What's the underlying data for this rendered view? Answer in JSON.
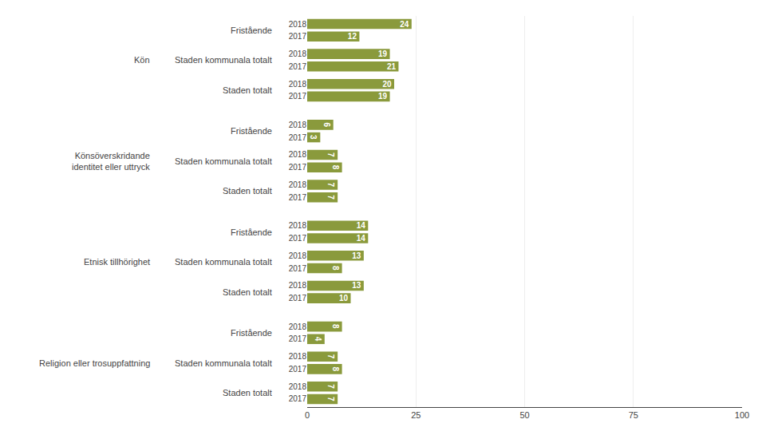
{
  "chart_data": {
    "type": "bar",
    "orientation": "horizontal",
    "color": "#8a9a3c",
    "xlim": [
      0,
      100
    ],
    "xticks": [
      0,
      25,
      50,
      75,
      100
    ],
    "grid": true,
    "data_labels": true,
    "groups": [
      {
        "label": "Kön",
        "subgroups": [
          {
            "label": "Fristående",
            "categories": [
              "2018",
              "2017"
            ],
            "values": [
              24,
              12
            ]
          },
          {
            "label": "Staden kommunala totalt",
            "categories": [
              "2018",
              "2017"
            ],
            "values": [
              19,
              21
            ]
          },
          {
            "label": "Staden totalt",
            "categories": [
              "2018",
              "2017"
            ],
            "values": [
              20,
              19
            ]
          }
        ]
      },
      {
        "label": "Könsöverskridande\nidentitet eller uttryck",
        "subgroups": [
          {
            "label": "Fristående",
            "categories": [
              "2018",
              "2017"
            ],
            "values": [
              6,
              3
            ]
          },
          {
            "label": "Staden kommunala totalt",
            "categories": [
              "2018",
              "2017"
            ],
            "values": [
              7,
              8
            ]
          },
          {
            "label": "Staden totalt",
            "categories": [
              "2018",
              "2017"
            ],
            "values": [
              7,
              7
            ]
          }
        ]
      },
      {
        "label": "Etnisk tillhörighet",
        "subgroups": [
          {
            "label": "Fristående",
            "categories": [
              "2018",
              "2017"
            ],
            "values": [
              14,
              14
            ]
          },
          {
            "label": "Staden kommunala totalt",
            "categories": [
              "2018",
              "2017"
            ],
            "values": [
              13,
              8
            ]
          },
          {
            "label": "Staden totalt",
            "categories": [
              "2018",
              "2017"
            ],
            "values": [
              13,
              10
            ]
          }
        ]
      },
      {
        "label": "Religion eller trosuppfattning",
        "subgroups": [
          {
            "label": "Fristående",
            "categories": [
              "2018",
              "2017"
            ],
            "values": [
              8,
              4
            ]
          },
          {
            "label": "Staden kommunala totalt",
            "categories": [
              "2018",
              "2017"
            ],
            "values": [
              7,
              8
            ]
          },
          {
            "label": "Staden totalt",
            "categories": [
              "2018",
              "2017"
            ],
            "values": [
              7,
              7
            ]
          }
        ]
      }
    ]
  }
}
